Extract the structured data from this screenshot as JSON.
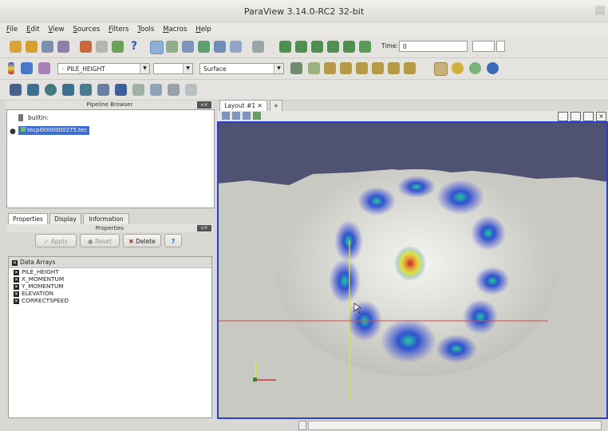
{
  "window": {
    "title": "ParaView 3.14.0-RC2 32-bit"
  },
  "menu": [
    "File",
    "Edit",
    "View",
    "Sources",
    "Filters",
    "Tools",
    "Macros",
    "Help"
  ],
  "toolbar": {
    "time_label": "Time:",
    "time_value": "0",
    "color_by": "PILE_HEIGHT",
    "component": "",
    "representation": "Surface"
  },
  "pipeline": {
    "title": "Pipeline Browser",
    "root": "builtin:",
    "item": "tecpl0000000275.tec"
  },
  "tabs": {
    "properties": "Properties",
    "display": "Display",
    "information": "Information"
  },
  "properties": {
    "header": "Properties",
    "apply": "Apply",
    "reset": "Reset",
    "delete": "Delete",
    "help": "?",
    "arrays_header": "Data Arrays",
    "arrays": [
      "PILE_HEIGHT",
      "X_MOMENTUM",
      "Y_MOMENTUM",
      "ELEVATION",
      "CORRECTSPEED"
    ]
  },
  "layout": {
    "tab": "Layout #1",
    "add": "+"
  },
  "colors": {
    "selection_border": "#2a3fd0",
    "sky": "#4f5270",
    "terrain": "#cfcfcb",
    "flow_blue": "#3a3ec8"
  }
}
